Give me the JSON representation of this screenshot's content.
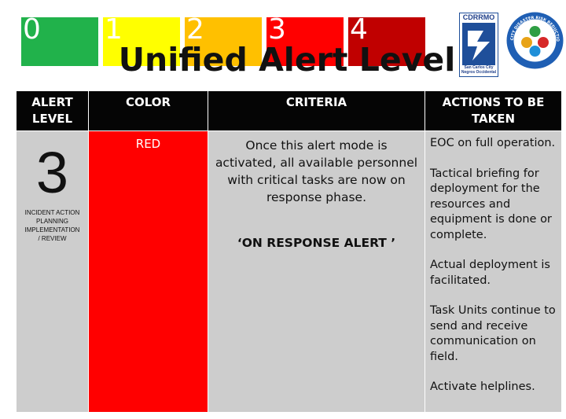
{
  "level_scale": [
    {
      "label": "0",
      "color": "#21b24b"
    },
    {
      "label": "1",
      "color": "#ffff00"
    },
    {
      "label": "2",
      "color": "#ffc000"
    },
    {
      "label": "3",
      "color": "#ff0000"
    },
    {
      "label": "4",
      "color": "#c00000"
    }
  ],
  "title": "Unified Alert Level",
  "logos": {
    "cdrrmo_text": "CDRRMO",
    "cdrrmo_city": "San Carlos City Negros Occidental",
    "seal_text": "CITY DISASTER RISK REDUCTION AND MANAGEMENT COUNCIL"
  },
  "table": {
    "headers": {
      "level": "ALERT LEVEL",
      "color": "COLOR",
      "criteria": "CRITERIA",
      "actions": "ACTIONS TO BE TAKEN"
    },
    "row": {
      "level_number": "3",
      "level_description": "INCIDENT ACTION PLANNING IMPLEMENTATION / REVIEW",
      "color_name": "RED",
      "color_hex": "#ff0000",
      "criteria": "Once this alert mode is activated, all available personnel with critical tasks are now on response phase.",
      "criteria_tag": "‘ON RESPONSE ALERT ’",
      "actions": [
        "EOC on full operation.",
        "Tactical briefing for deployment for the resources and equipment is done or complete.",
        "Actual deployment is facilitated.",
        "Task Units continue to send and receive communication on field.",
        "Activate helplines."
      ]
    }
  }
}
